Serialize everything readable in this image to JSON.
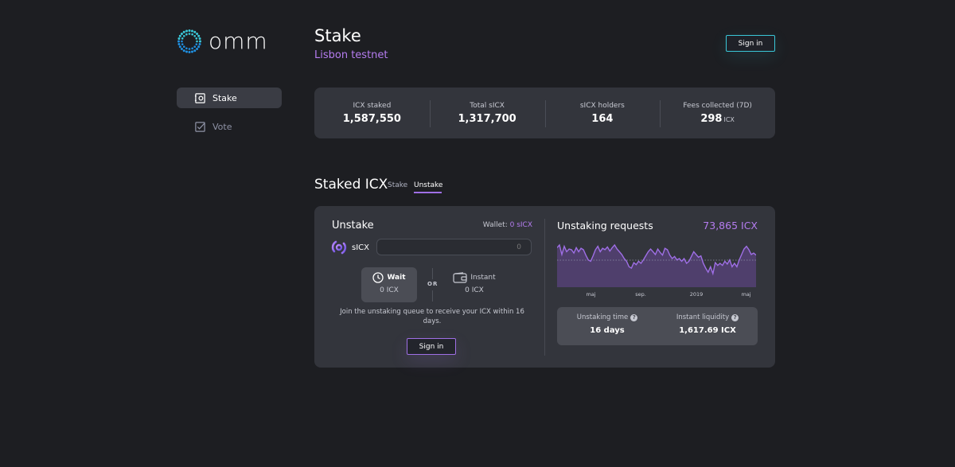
{
  "brand": {
    "name": "omm"
  },
  "nav": {
    "items": [
      {
        "label": "Stake",
        "icon": "safe-icon",
        "active": true
      },
      {
        "label": "Vote",
        "icon": "checkbox-icon",
        "active": false
      }
    ]
  },
  "header": {
    "title": "Stake",
    "subtitle": "Lisbon testnet",
    "signin_label": "Sign in"
  },
  "stats": [
    {
      "label": "ICX staked",
      "value": "1,587,550",
      "unit": ""
    },
    {
      "label": "Total sICX",
      "value": "1,317,700",
      "unit": ""
    },
    {
      "label": "sICX holders",
      "value": "164",
      "unit": ""
    },
    {
      "label": "Fees collected (7D)",
      "value": "298",
      "unit": "ICX"
    }
  ],
  "section": {
    "title": "Staked ICX",
    "tabs": [
      {
        "label": "Stake",
        "active": false
      },
      {
        "label": "Unstake",
        "active": true
      }
    ]
  },
  "unstake": {
    "title": "Unstake",
    "wallet_label": "Wallet:",
    "wallet_value": "0 sICX",
    "token_label": "sICX",
    "input_placeholder": "0",
    "options": {
      "wait": {
        "label": "Wait",
        "value": "0 ICX"
      },
      "or": "OR",
      "instant": {
        "label": "Instant",
        "value": "0 ICX"
      }
    },
    "description": "Join the unstaking queue to receive your ICX within 16 days.",
    "signin_label": "Sign in"
  },
  "requests": {
    "title": "Unstaking requests",
    "value": "73,865 ICX",
    "info": {
      "time_label": "Unstaking time",
      "time_value": "16 days",
      "liquidity_label": "Instant liquidity",
      "liquidity_value": "1,617.69 ICX"
    }
  },
  "chart_data": {
    "type": "area",
    "title": "",
    "xlabel": "",
    "ylabel": "",
    "x_tick_labels": [
      "maj",
      "sep.",
      "2019",
      "maj"
    ],
    "values": [
      58,
      62,
      48,
      60,
      52,
      56,
      55,
      50,
      58,
      52,
      57,
      55,
      47,
      40,
      38,
      46,
      55,
      60,
      52,
      57,
      55,
      59,
      53,
      58,
      62,
      56,
      52,
      48,
      42,
      38,
      30,
      28,
      36,
      33,
      38,
      35,
      40,
      46,
      52,
      56,
      52,
      48,
      56,
      51,
      47,
      57,
      55,
      47,
      42,
      45,
      40,
      42,
      38,
      42,
      35,
      38,
      45,
      52,
      48,
      44,
      46,
      35,
      28,
      22,
      30,
      20,
      36,
      32,
      35,
      32,
      38,
      34,
      40,
      30,
      35,
      30,
      40,
      48,
      56,
      60,
      55,
      48,
      50,
      47
    ],
    "series_color": "#9f6fe6",
    "fill_color": "#4f3f6c",
    "reference_line": "dotted horizontal"
  }
}
